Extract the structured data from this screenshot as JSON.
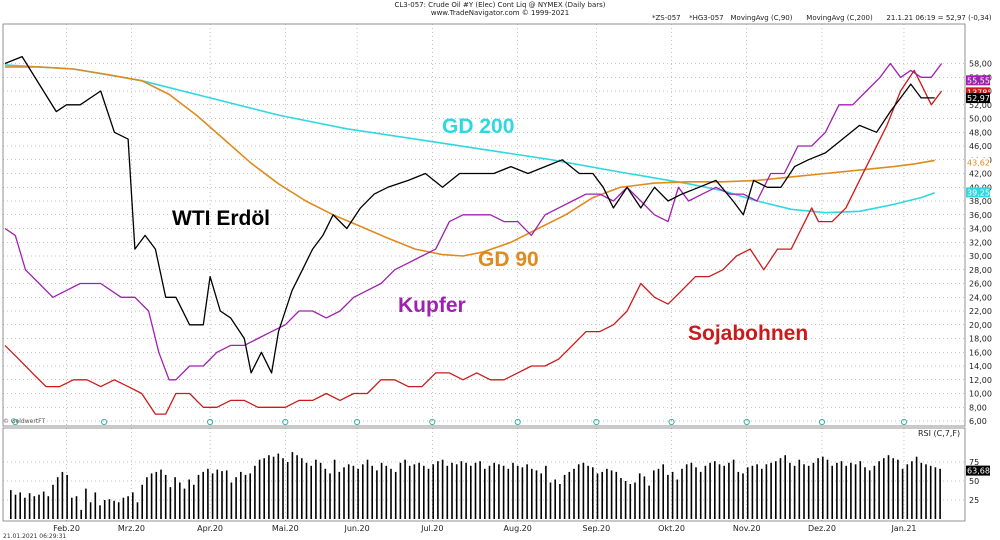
{
  "header": {
    "line1": "CL3-057: Crude Oil #Y (Elec) Cont Liq @ NYMEX (Daily bars)",
    "line2": "www.TradeNavigator.com © 1999-2021",
    "legend": [
      {
        "text": "*ZS-057",
        "color": "#cc1a1a"
      },
      {
        "text": "*HG3-057",
        "color": "#a020b0"
      },
      {
        "text": "MovingAvg (C,90)",
        "color": "#e08a1e"
      },
      {
        "text": "MovingAvg (C,200)",
        "color": "#2fd8e0"
      },
      {
        "text": "21.1.21 06:19 = 52,97 (-0,34)",
        "color": "#222222"
      }
    ]
  },
  "source_label": "© GeldwertFT",
  "footer_timestamp": "21.01.2021 06:29:31",
  "colors": {
    "wti": "#000000",
    "copper": "#a020b0",
    "soy": "#cc1a1a",
    "ma90": "#e08a1e",
    "ma200": "#2fd8e0",
    "marker": "#3fb2a4",
    "grid": "#888888"
  },
  "annotations": {
    "wti": "WTI Erdöl",
    "ma200": "GD 200",
    "ma90": "GD 90",
    "copper": "Kupfer",
    "soy": "Sojabohnen"
  },
  "price_tags": {
    "copper": "55,55",
    "soy": "1378°6",
    "wti": "52,97",
    "ma90": "43,62",
    "ma200": "39,25"
  },
  "rsi_label": "RSI (C,7,F)",
  "rsi_value_tag": "63,68",
  "chart_data": {
    "type": "line",
    "x_range": [
      0,
      275
    ],
    "x_unit": "trading day",
    "x_months": [
      {
        "label": "Feb.20",
        "x": 18
      },
      {
        "label": "Mrz.20",
        "x": 37
      },
      {
        "label": "Apr.20",
        "x": 60
      },
      {
        "label": "Mai.20",
        "x": 82
      },
      {
        "label": "Jun.20",
        "x": 103
      },
      {
        "label": "Jul.20",
        "x": 125
      },
      {
        "label": "Aug.20",
        "x": 150
      },
      {
        "label": "Sep.20",
        "x": 173
      },
      {
        "label": "Okt.20",
        "x": 195
      },
      {
        "label": "Nov.20",
        "x": 217
      },
      {
        "label": "Dez.20",
        "x": 239
      },
      {
        "label": "Jan.21",
        "x": 263
      }
    ],
    "y_range": [
      6,
      62
    ],
    "y_ticks": [
      6,
      8,
      10,
      12,
      14,
      16,
      18,
      20,
      22,
      24,
      26,
      28,
      30,
      32,
      34,
      36,
      38,
      40,
      42,
      44,
      46,
      48,
      50,
      52,
      54,
      56,
      58
    ],
    "series": [
      {
        "key": "wti",
        "points": [
          [
            0,
            58
          ],
          [
            5,
            59
          ],
          [
            10,
            55
          ],
          [
            15,
            51
          ],
          [
            18,
            52
          ],
          [
            22,
            52
          ],
          [
            28,
            54
          ],
          [
            32,
            48
          ],
          [
            36,
            47
          ],
          [
            38,
            31
          ],
          [
            41,
            33
          ],
          [
            44,
            31
          ],
          [
            47,
            24
          ],
          [
            50,
            24
          ],
          [
            54,
            20
          ],
          [
            58,
            20
          ],
          [
            60,
            27
          ],
          [
            63,
            22
          ],
          [
            66,
            21
          ],
          [
            70,
            18
          ],
          [
            72,
            13
          ],
          [
            75,
            16
          ],
          [
            78,
            13
          ],
          [
            80,
            19
          ],
          [
            84,
            25
          ],
          [
            87,
            28
          ],
          [
            90,
            31
          ],
          [
            93,
            33
          ],
          [
            96,
            36
          ],
          [
            100,
            34
          ],
          [
            104,
            37
          ],
          [
            108,
            39
          ],
          [
            112,
            40
          ],
          [
            118,
            41
          ],
          [
            123,
            42
          ],
          [
            128,
            40
          ],
          [
            133,
            42
          ],
          [
            138,
            42
          ],
          [
            143,
            42
          ],
          [
            148,
            43
          ],
          [
            153,
            42
          ],
          [
            158,
            43
          ],
          [
            163,
            44
          ],
          [
            168,
            42
          ],
          [
            172,
            42
          ],
          [
            175,
            40
          ],
          [
            178,
            37
          ],
          [
            182,
            40
          ],
          [
            186,
            37
          ],
          [
            190,
            40
          ],
          [
            194,
            38
          ],
          [
            198,
            39
          ],
          [
            203,
            40
          ],
          [
            208,
            41
          ],
          [
            213,
            38
          ],
          [
            216,
            36
          ],
          [
            219,
            41
          ],
          [
            223,
            40
          ],
          [
            227,
            40
          ],
          [
            231,
            43
          ],
          [
            235,
            44
          ],
          [
            240,
            45
          ],
          [
            245,
            47
          ],
          [
            250,
            49
          ],
          [
            255,
            48
          ],
          [
            259,
            51
          ],
          [
            262,
            53
          ],
          [
            265,
            55
          ],
          [
            268,
            53
          ],
          [
            272,
            53
          ]
        ]
      },
      {
        "key": "copper",
        "points": [
          [
            0,
            34
          ],
          [
            3,
            33
          ],
          [
            6,
            28
          ],
          [
            10,
            26
          ],
          [
            14,
            24
          ],
          [
            18,
            25
          ],
          [
            22,
            26
          ],
          [
            28,
            26
          ],
          [
            34,
            24
          ],
          [
            38,
            24
          ],
          [
            42,
            22
          ],
          [
            45,
            16
          ],
          [
            48,
            12
          ],
          [
            50,
            12
          ],
          [
            54,
            14
          ],
          [
            58,
            14
          ],
          [
            62,
            16
          ],
          [
            66,
            17
          ],
          [
            70,
            17
          ],
          [
            74,
            18
          ],
          [
            78,
            19
          ],
          [
            82,
            20
          ],
          [
            86,
            22
          ],
          [
            90,
            22
          ],
          [
            94,
            21
          ],
          [
            98,
            22
          ],
          [
            102,
            24
          ],
          [
            106,
            25
          ],
          [
            110,
            26
          ],
          [
            114,
            28
          ],
          [
            118,
            29
          ],
          [
            122,
            30
          ],
          [
            126,
            31
          ],
          [
            130,
            35
          ],
          [
            134,
            36
          ],
          [
            138,
            36
          ],
          [
            142,
            36
          ],
          [
            146,
            35
          ],
          [
            150,
            35
          ],
          [
            154,
            33
          ],
          [
            158,
            36
          ],
          [
            162,
            37
          ],
          [
            166,
            38
          ],
          [
            170,
            39
          ],
          [
            174,
            39
          ],
          [
            178,
            38
          ],
          [
            182,
            40
          ],
          [
            186,
            38
          ],
          [
            190,
            36
          ],
          [
            194,
            35
          ],
          [
            197,
            40
          ],
          [
            200,
            38
          ],
          [
            204,
            39
          ],
          [
            208,
            40
          ],
          [
            212,
            39
          ],
          [
            216,
            39
          ],
          [
            220,
            38
          ],
          [
            224,
            42
          ],
          [
            228,
            42
          ],
          [
            232,
            46
          ],
          [
            236,
            46
          ],
          [
            240,
            48
          ],
          [
            244,
            52
          ],
          [
            248,
            52
          ],
          [
            252,
            54
          ],
          [
            256,
            56
          ],
          [
            259,
            58
          ],
          [
            262,
            56
          ],
          [
            265,
            57
          ],
          [
            268,
            56
          ],
          [
            271,
            56
          ],
          [
            274,
            58
          ]
        ]
      },
      {
        "key": "soy",
        "points": [
          [
            0,
            17
          ],
          [
            4,
            15
          ],
          [
            8,
            13
          ],
          [
            12,
            11
          ],
          [
            16,
            11
          ],
          [
            20,
            12
          ],
          [
            24,
            12
          ],
          [
            28,
            11
          ],
          [
            32,
            12
          ],
          [
            36,
            11
          ],
          [
            40,
            10
          ],
          [
            44,
            7
          ],
          [
            47,
            7
          ],
          [
            50,
            10
          ],
          [
            54,
            10
          ],
          [
            58,
            8
          ],
          [
            62,
            8
          ],
          [
            66,
            9
          ],
          [
            70,
            9
          ],
          [
            74,
            8
          ],
          [
            78,
            8
          ],
          [
            82,
            8
          ],
          [
            86,
            9
          ],
          [
            90,
            9
          ],
          [
            94,
            10
          ],
          [
            98,
            9
          ],
          [
            102,
            10
          ],
          [
            106,
            10
          ],
          [
            110,
            12
          ],
          [
            114,
            12
          ],
          [
            118,
            11
          ],
          [
            122,
            11
          ],
          [
            126,
            13
          ],
          [
            130,
            13
          ],
          [
            134,
            12
          ],
          [
            138,
            13
          ],
          [
            142,
            12
          ],
          [
            146,
            12
          ],
          [
            150,
            13
          ],
          [
            154,
            14
          ],
          [
            158,
            14
          ],
          [
            162,
            15
          ],
          [
            166,
            17
          ],
          [
            170,
            19
          ],
          [
            174,
            19
          ],
          [
            178,
            20
          ],
          [
            182,
            22
          ],
          [
            186,
            26
          ],
          [
            190,
            24
          ],
          [
            194,
            23
          ],
          [
            198,
            25
          ],
          [
            202,
            27
          ],
          [
            206,
            27
          ],
          [
            210,
            28
          ],
          [
            214,
            30
          ],
          [
            218,
            31
          ],
          [
            222,
            28
          ],
          [
            226,
            31
          ],
          [
            230,
            31
          ],
          [
            234,
            35
          ],
          [
            236,
            37
          ],
          [
            238,
            35
          ],
          [
            242,
            35
          ],
          [
            246,
            37
          ],
          [
            250,
            41
          ],
          [
            254,
            45
          ],
          [
            258,
            49
          ],
          [
            262,
            54
          ],
          [
            266,
            57
          ],
          [
            268,
            55
          ],
          [
            271,
            52
          ],
          [
            274,
            54
          ]
        ]
      },
      {
        "key": "ma90",
        "points": [
          [
            0,
            57.5
          ],
          [
            10,
            57.5
          ],
          [
            20,
            57.2
          ],
          [
            30,
            56.4
          ],
          [
            40,
            55.5
          ],
          [
            48,
            53.5
          ],
          [
            56,
            50.5
          ],
          [
            64,
            47
          ],
          [
            72,
            43.5
          ],
          [
            80,
            40.5
          ],
          [
            88,
            38
          ],
          [
            96,
            36
          ],
          [
            104,
            34.3
          ],
          [
            112,
            32.6
          ],
          [
            120,
            31
          ],
          [
            128,
            30.2
          ],
          [
            134,
            30
          ],
          [
            140,
            30.6
          ],
          [
            148,
            32
          ],
          [
            156,
            34
          ],
          [
            164,
            36
          ],
          [
            172,
            38.5
          ],
          [
            180,
            40
          ],
          [
            190,
            40.6
          ],
          [
            200,
            40.8
          ],
          [
            210,
            40.8
          ],
          [
            220,
            41
          ],
          [
            230,
            41.5
          ],
          [
            240,
            42
          ],
          [
            250,
            42.5
          ],
          [
            260,
            43
          ],
          [
            266,
            43.4
          ],
          [
            272,
            43.9
          ]
        ]
      },
      {
        "key": "ma200",
        "points": [
          [
            0,
            57.8
          ],
          [
            20,
            57.2
          ],
          [
            40,
            55.5
          ],
          [
            60,
            53
          ],
          [
            80,
            50.5
          ],
          [
            100,
            48.5
          ],
          [
            120,
            47
          ],
          [
            140,
            45.5
          ],
          [
            160,
            44
          ],
          [
            180,
            42.2
          ],
          [
            200,
            40.5
          ],
          [
            210,
            39.5
          ],
          [
            220,
            38
          ],
          [
            230,
            36.8
          ],
          [
            240,
            36.3
          ],
          [
            250,
            36.5
          ],
          [
            260,
            37.5
          ],
          [
            268,
            38.5
          ],
          [
            272,
            39.2
          ]
        ]
      }
    ],
    "rsi_bars": [
      38,
      32,
      35,
      28,
      34,
      30,
      32,
      36,
      30,
      45,
      55,
      62,
      58,
      28,
      30,
      12,
      40,
      22,
      35,
      18,
      25,
      26,
      24,
      22,
      28,
      30,
      35,
      22,
      45,
      55,
      60,
      62,
      65,
      58,
      42,
      55,
      48,
      40,
      52,
      45,
      58,
      62,
      66,
      60,
      65,
      63,
      64,
      48,
      55,
      62,
      58,
      60,
      70,
      78,
      80,
      84,
      82,
      86,
      80,
      75,
      88,
      84,
      80,
      74,
      70,
      78,
      74,
      66,
      60,
      78,
      62,
      68,
      72,
      70,
      66,
      72,
      78,
      70,
      64,
      74,
      70,
      66,
      62,
      74,
      78,
      70,
      72,
      74,
      70,
      66,
      72,
      76,
      78,
      70,
      74,
      72,
      76,
      74,
      70,
      74,
      76,
      66,
      70,
      74,
      72,
      70,
      66,
      74,
      70,
      68,
      72,
      66,
      64,
      60,
      70,
      48,
      52,
      46,
      58,
      62,
      66,
      72,
      74,
      70,
      68,
      60,
      62,
      66,
      64,
      62,
      54,
      50,
      46,
      48,
      60,
      56,
      44,
      64,
      66,
      72,
      58,
      62,
      52,
      66,
      72,
      74,
      68,
      62,
      70,
      74,
      76,
      72,
      70,
      74,
      78,
      62,
      60,
      68,
      70,
      72,
      66,
      72,
      74,
      76,
      80,
      84,
      74,
      70,
      78,
      72,
      70,
      74,
      80,
      82,
      78,
      70,
      74,
      76,
      70,
      74,
      72,
      76,
      68,
      64,
      70,
      76,
      80,
      84,
      80,
      78,
      66,
      72,
      76,
      82,
      74,
      72,
      70,
      68,
      66
    ],
    "rsi_ticks": [
      25,
      50,
      75
    ],
    "rsi_range": [
      0,
      100
    ]
  }
}
